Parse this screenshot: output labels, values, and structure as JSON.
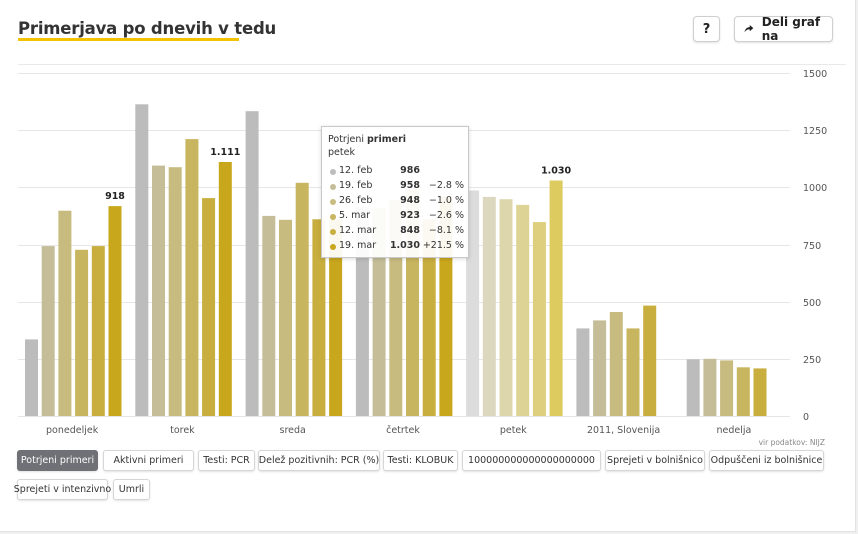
{
  "header": {
    "title": "Primerjava po dnevih v tedu",
    "help_label": "?",
    "share_label": "Deli graf na"
  },
  "colors": {
    "accent_underline": "#f2c300",
    "grid": "#e6e6e6",
    "axis_text": "#555555",
    "series_colors": [
      "#bcbcbc",
      "#c4bd98",
      "#c7bb80",
      "#c8b560",
      "#c8ae3e",
      "#c9a71c"
    ],
    "highlight_colors": [
      "#dcdcdc",
      "#dcd7bf",
      "#ddd6ad",
      "#ddd394",
      "#ddcf7e",
      "#ddcb5f"
    ]
  },
  "chart_data": {
    "type": "bar",
    "categories": [
      "ponedeljek",
      "torek",
      "sreda",
      "četrtek",
      "petek",
      "2011, Slovenija",
      "nedelja"
    ],
    "series": [
      {
        "name": "12. feb",
        "values": [
          335,
          1363,
          1333,
          913,
          986,
          383,
          248
        ]
      },
      {
        "name": "19. feb",
        "values": [
          743,
          1095,
          875,
          911,
          958,
          418,
          250
        ]
      },
      {
        "name": "26. feb",
        "values": [
          898,
          1088,
          858,
          945,
          948,
          455,
          243
        ]
      },
      {
        "name": "5. mar",
        "values": [
          727,
          1211,
          1020,
          990,
          923,
          383,
          213
        ]
      },
      {
        "name": "12. mar",
        "values": [
          743,
          953,
          860,
          860,
          848,
          483,
          208
        ]
      },
      {
        "name": "19. mar",
        "values": [
          918,
          1111,
          860,
          960,
          1030,
          null,
          null
        ]
      }
    ],
    "data_labels": [
      {
        "category": "ponedeljek",
        "text": "918"
      },
      {
        "category": "torek",
        "text": "1.111"
      },
      {
        "category": "petek",
        "text": "1.030"
      }
    ],
    "y_ticks": [
      "0",
      "250",
      "500",
      "750",
      "1000",
      "1250",
      "1500"
    ],
    "ylim": [
      0,
      1500
    ],
    "grid": true,
    "hovered_category": "petek"
  },
  "tooltip": {
    "prefix": "Potrjeni ",
    "metric": "primeri",
    "day": "petek",
    "rows": [
      {
        "date": "12. feb",
        "value": "986",
        "change": ""
      },
      {
        "date": "19. feb",
        "value": "958",
        "change": "−2.8 %"
      },
      {
        "date": "26. feb",
        "value": "948",
        "change": "−1.0 %"
      },
      {
        "date": "5. mar",
        "value": "923",
        "change": "−2.6 %"
      },
      {
        "date": "12. mar",
        "value": "848",
        "change": "−8.1 %"
      },
      {
        "date": "19. mar",
        "value": "1.030",
        "change": "+21.5 %"
      }
    ]
  },
  "source": "vir podatkov: NIJZ",
  "filters": [
    {
      "label": "Potrjeni primeri",
      "active": true
    },
    {
      "label": "Aktivni primeri",
      "active": false
    },
    {
      "label": "Testi: PCR",
      "active": false
    },
    {
      "label": "Delež pozitivnih: PCR (%)",
      "active": false
    },
    {
      "label": "Testi: KLOBUK",
      "active": false
    },
    {
      "label": "100000000000000000000",
      "active": false
    },
    {
      "label": "Sprejeti v bolnišnico",
      "active": false
    },
    {
      "label": "Odpuščeni iz bolnišnice",
      "active": false
    },
    {
      "label": "Sprejeti v intenzivno",
      "active": false
    },
    {
      "label": "Umrli",
      "active": false
    }
  ]
}
